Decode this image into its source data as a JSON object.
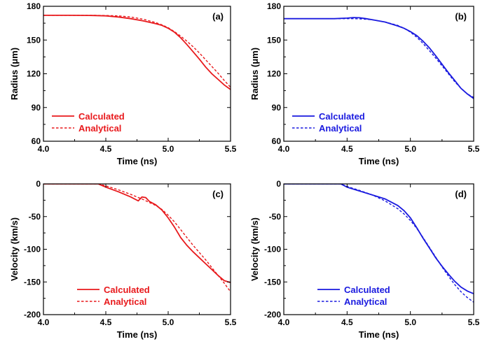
{
  "chart_data": [
    {
      "id": "a",
      "type": "line",
      "panel_label": "(a)",
      "xlabel": "Time (ns)",
      "ylabel": "Radius (μm)",
      "xlim": [
        4.0,
        5.5
      ],
      "ylim": [
        60,
        180
      ],
      "xticks": [
        4.0,
        4.5,
        5.0,
        5.5
      ],
      "xtick_labels": [
        "4.0",
        "4.5",
        "5.0",
        "5.5"
      ],
      "yticks": [
        60,
        90,
        120,
        150,
        180
      ],
      "ytick_labels": [
        "60",
        "90",
        "120",
        "150",
        "180"
      ],
      "color": "#e8191c",
      "legend_position": "bottom-left",
      "series": [
        {
          "name": "Calculated",
          "style": "solid",
          "x": [
            4.0,
            4.2,
            4.4,
            4.5,
            4.6,
            4.7,
            4.8,
            4.9,
            4.95,
            5.0,
            5.05,
            5.1,
            5.15,
            5.2,
            5.25,
            5.3,
            5.35,
            5.4,
            5.45,
            5.5
          ],
          "y": [
            172,
            172,
            171.8,
            171.5,
            170.5,
            169,
            167,
            164.5,
            163,
            160.5,
            157,
            152,
            146,
            139.5,
            133,
            126,
            120,
            115,
            110,
            106
          ]
        },
        {
          "name": "Analytical",
          "style": "dashed",
          "x": [
            4.0,
            4.2,
            4.4,
            4.5,
            4.6,
            4.7,
            4.8,
            4.9,
            4.95,
            5.0,
            5.05,
            5.1,
            5.15,
            5.2,
            5.25,
            5.3,
            5.35,
            5.4,
            5.45,
            5.5
          ],
          "y": [
            172,
            172,
            172,
            171.8,
            171.5,
            170.5,
            168.5,
            165.5,
            163.5,
            161,
            157.5,
            153.5,
            149,
            144,
            138.5,
            132.5,
            126.5,
            120.5,
            114,
            108
          ]
        }
      ]
    },
    {
      "id": "b",
      "type": "line",
      "panel_label": "(b)",
      "xlabel": "Time (ns)",
      "ylabel": "Radius (μm)",
      "xlim": [
        4.0,
        5.5
      ],
      "ylim": [
        60,
        180
      ],
      "xticks": [
        4.0,
        4.5,
        5.0,
        5.5
      ],
      "xtick_labels": [
        "4.0",
        "4.5",
        "5.0",
        "5.5"
      ],
      "yticks": [
        60,
        90,
        120,
        150,
        180
      ],
      "ytick_labels": [
        "60",
        "90",
        "120",
        "150",
        "180"
      ],
      "color": "#1a1adf",
      "legend_position": "bottom-left",
      "series": [
        {
          "name": "Calculated",
          "style": "solid",
          "x": [
            4.0,
            4.2,
            4.4,
            4.5,
            4.55,
            4.6,
            4.65,
            4.7,
            4.8,
            4.9,
            4.95,
            5.0,
            5.05,
            5.1,
            5.15,
            5.2,
            5.25,
            5.3,
            5.35,
            5.4,
            5.45,
            5.5
          ],
          "y": [
            169,
            169,
            169,
            169.5,
            170,
            169.8,
            169,
            168,
            166,
            162.5,
            160.5,
            157.5,
            154,
            149,
            143,
            136,
            128.5,
            121,
            114,
            107,
            102,
            98
          ]
        },
        {
          "name": "Analytical",
          "style": "dashed",
          "x": [
            4.0,
            4.2,
            4.4,
            4.5,
            4.55,
            4.6,
            4.65,
            4.7,
            4.8,
            4.9,
            4.95,
            5.0,
            5.05,
            5.1,
            5.15,
            5.2,
            5.25,
            5.3,
            5.35,
            5.4,
            5.45,
            5.5
          ],
          "y": [
            169,
            169,
            169,
            169,
            169,
            168.8,
            168.5,
            168,
            166,
            163,
            160.5,
            157,
            152.5,
            147,
            140.5,
            134,
            127,
            120,
            113,
            107,
            102,
            99
          ]
        }
      ]
    },
    {
      "id": "c",
      "type": "line",
      "panel_label": "(c)",
      "xlabel": "Time (ns)",
      "ylabel": "Velocity (km/s)",
      "xlim": [
        4.0,
        5.5
      ],
      "ylim": [
        -200,
        0
      ],
      "xticks": [
        4.0,
        4.5,
        5.0,
        5.5
      ],
      "xtick_labels": [
        "4.0",
        "4.5",
        "5.0",
        "5.5"
      ],
      "yticks": [
        -200,
        -150,
        -100,
        -50,
        0
      ],
      "ytick_labels": [
        "-200",
        "-150",
        "-100",
        "-50",
        "0"
      ],
      "color": "#e8191c",
      "legend_position": "bottom-right",
      "series": [
        {
          "name": "Calculated",
          "style": "solid",
          "x": [
            4.0,
            4.44,
            4.5,
            4.6,
            4.7,
            4.76,
            4.79,
            4.82,
            4.85,
            4.9,
            4.95,
            5.0,
            5.05,
            5.1,
            5.15,
            5.2,
            5.25,
            5.3,
            5.35,
            5.4,
            5.45,
            5.5
          ],
          "y": [
            0,
            0,
            -5,
            -12,
            -20,
            -26,
            -20,
            -21,
            -27,
            -32,
            -40,
            -52,
            -66,
            -82,
            -94,
            -104,
            -113,
            -122,
            -131,
            -140,
            -148,
            -151
          ]
        },
        {
          "name": "Analytical",
          "style": "dashed",
          "x": [
            4.0,
            4.44,
            4.5,
            4.6,
            4.7,
            4.8,
            4.9,
            4.95,
            5.0,
            5.05,
            5.1,
            5.15,
            5.2,
            5.25,
            5.3,
            5.35,
            5.4,
            5.45,
            5.5
          ],
          "y": [
            0,
            0,
            -3,
            -9,
            -16,
            -24,
            -33,
            -39,
            -48,
            -58,
            -70,
            -82,
            -94,
            -105,
            -116,
            -128,
            -140,
            -152,
            -165
          ]
        }
      ]
    },
    {
      "id": "d",
      "type": "line",
      "panel_label": "(d)",
      "xlabel": "Time (ns)",
      "ylabel": "Velocity (km/s)",
      "xlim": [
        4.0,
        5.5
      ],
      "ylim": [
        -200,
        0
      ],
      "xticks": [
        4.0,
        4.5,
        5.0,
        5.5
      ],
      "xtick_labels": [
        "4.0",
        "4.5",
        "5.0",
        "5.5"
      ],
      "yticks": [
        -200,
        -150,
        -100,
        -50,
        0
      ],
      "ytick_labels": [
        "-200",
        "-150",
        "-100",
        "-50",
        "0"
      ],
      "color": "#1a1adf",
      "legend_position": "bottom-right",
      "series": [
        {
          "name": "Calculated",
          "style": "solid",
          "x": [
            4.0,
            4.45,
            4.5,
            4.6,
            4.7,
            4.8,
            4.9,
            4.95,
            5.0,
            5.05,
            5.1,
            5.15,
            5.2,
            5.25,
            5.3,
            5.35,
            5.4,
            5.45,
            5.5
          ],
          "y": [
            0,
            0,
            -5,
            -11,
            -17,
            -23,
            -33,
            -41,
            -52,
            -67,
            -83,
            -98,
            -113,
            -126,
            -138,
            -149,
            -158,
            -164,
            -168
          ]
        },
        {
          "name": "Analytical",
          "style": "dashed",
          "x": [
            4.0,
            4.45,
            4.5,
            4.6,
            4.7,
            4.8,
            4.9,
            4.95,
            5.0,
            5.05,
            5.1,
            5.15,
            5.2,
            5.25,
            5.3,
            5.35,
            5.4,
            5.45,
            5.5
          ],
          "y": [
            0,
            0,
            -4,
            -10,
            -17,
            -26,
            -38,
            -46,
            -56,
            -68,
            -82,
            -97,
            -112,
            -127,
            -141,
            -154,
            -165,
            -174,
            -181
          ]
        }
      ]
    }
  ]
}
